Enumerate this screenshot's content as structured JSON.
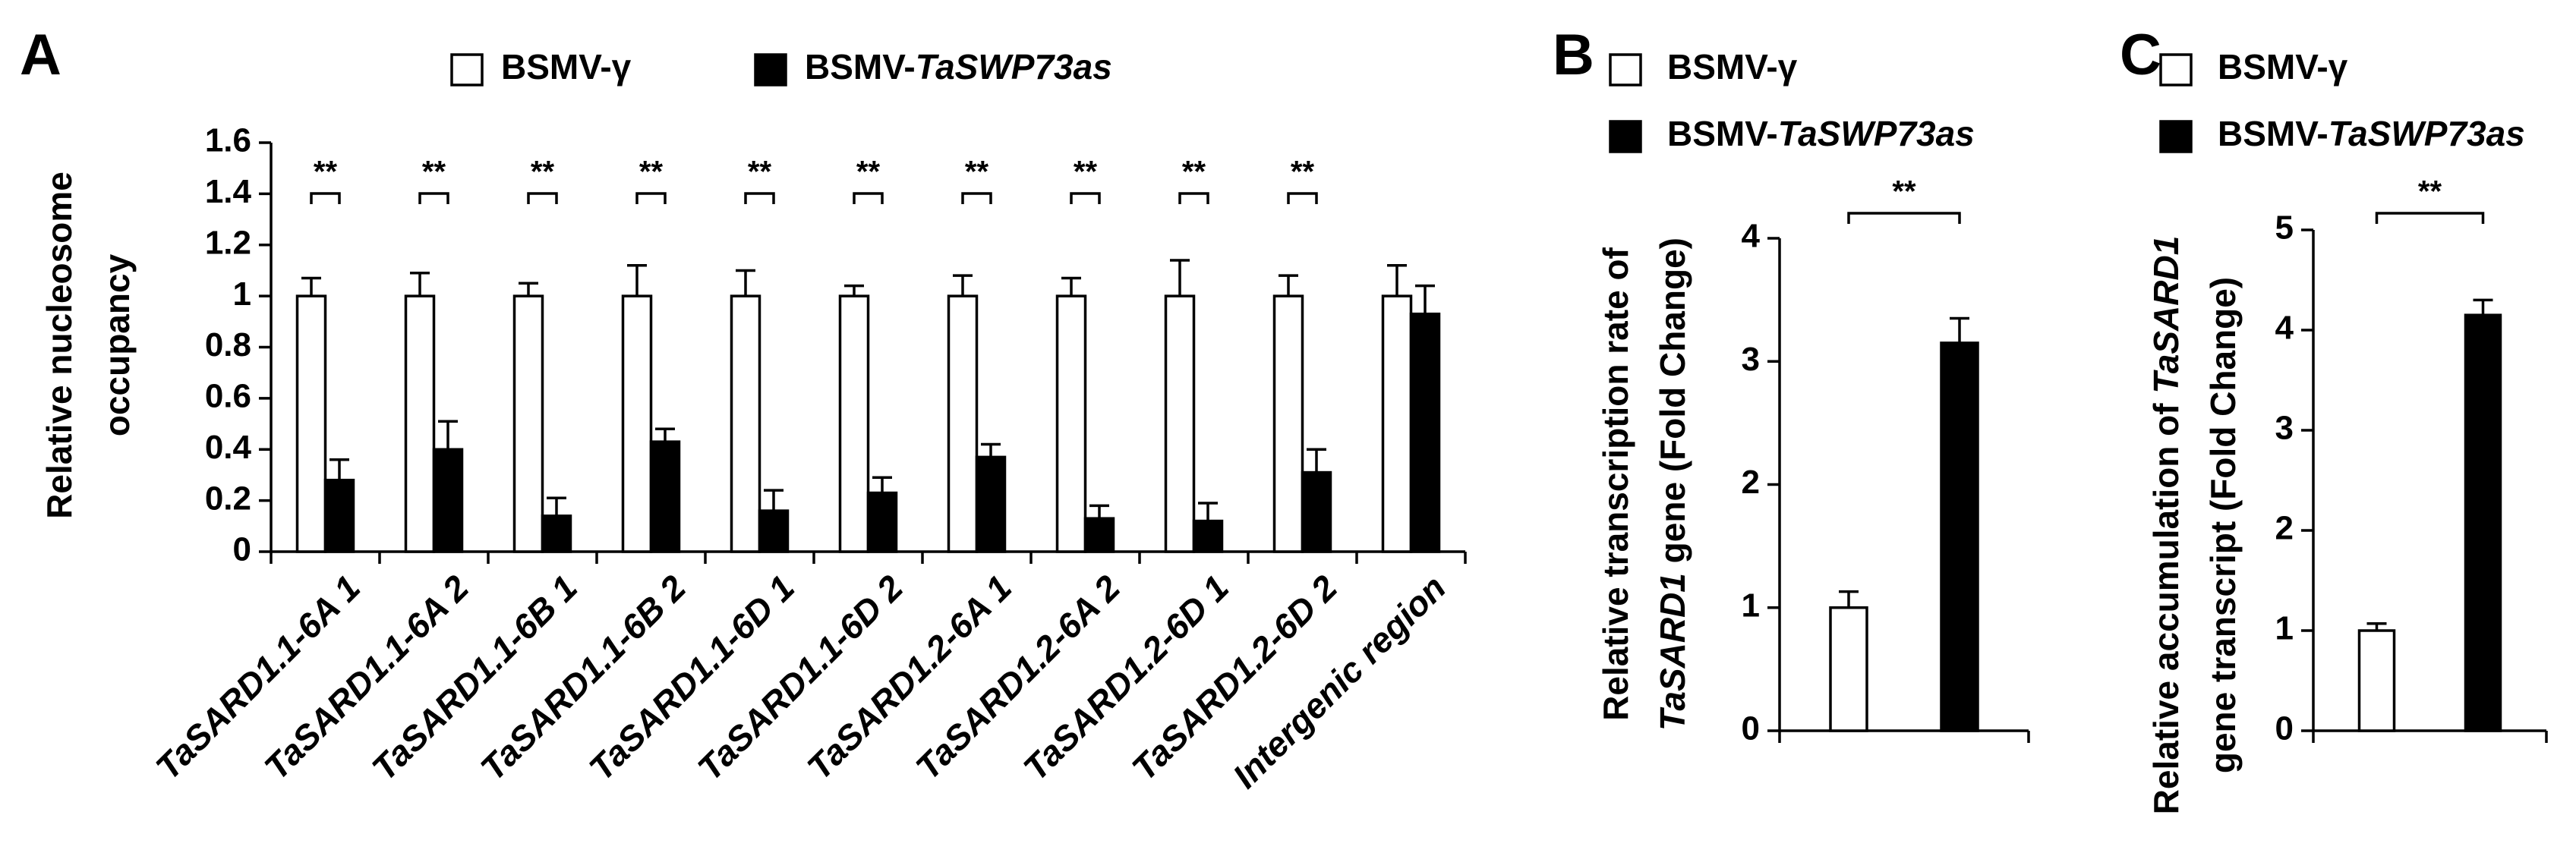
{
  "chart_data": [
    {
      "type": "bar",
      "panel": "A",
      "ylabel": [
        [
          "Relative nucleosome"
        ],
        [
          "occupancy"
        ]
      ],
      "categories": [
        "TaSARD1.1-6A 1",
        "TaSARD1.1-6A 2",
        "TaSARD1.1-6B 1",
        "TaSARD1.1-6B 2",
        "TaSARD1.1-6D 1",
        "TaSARD1.1-6D 2",
        "TaSARD1.2-6A 1",
        "TaSARD1.2-6A 2",
        "TaSARD1.2-6D 1",
        "TaSARD1.2-6D 2",
        "Intergenic region"
      ],
      "series": [
        {
          "name": "BSMV-γ",
          "color": "#ffffff",
          "values": [
            1,
            1,
            1,
            1,
            1,
            1,
            1,
            1,
            1,
            1,
            1
          ],
          "errors": [
            0.07,
            0.09,
            0.05,
            0.12,
            0.1,
            0.04,
            0.08,
            0.07,
            0.14,
            0.08,
            0.12
          ]
        },
        {
          "name": "BSMV-TaSWP73as",
          "legend_italic": true,
          "color": "#000000",
          "values": [
            0.28,
            0.4,
            0.14,
            0.43,
            0.16,
            0.23,
            0.37,
            0.13,
            0.12,
            0.31,
            0.93
          ],
          "errors": [
            0.08,
            0.11,
            0.07,
            0.05,
            0.08,
            0.06,
            0.05,
            0.05,
            0.07,
            0.09,
            0.11
          ]
        }
      ],
      "significance": [
        "**",
        "**",
        "**",
        "**",
        "**",
        "**",
        "**",
        "**",
        "**",
        "**",
        null
      ],
      "ylim": [
        0,
        1.6
      ],
      "yticks": [
        0,
        0.2,
        0.4,
        0.6,
        0.8,
        1,
        1.2,
        1.4,
        1.6
      ]
    },
    {
      "type": "bar",
      "panel": "B",
      "ylabel": [
        [
          "Relative transcription rate of"
        ],
        [
          {
            "text": "TaSARD1",
            "italic": true
          },
          " gene (Fold Change)"
        ]
      ],
      "categories": [
        null
      ],
      "series": [
        {
          "name": "BSMV-γ",
          "color": "#ffffff",
          "values": [
            1
          ],
          "errors": [
            0.13
          ]
        },
        {
          "name": "BSMV-TaSWP73as",
          "legend_italic": true,
          "color": "#000000",
          "values": [
            3.15
          ],
          "errors": [
            0.2
          ]
        }
      ],
      "significance": [
        "**"
      ],
      "ylim": [
        0,
        4
      ],
      "yticks": [
        0,
        1,
        2,
        3,
        4
      ]
    },
    {
      "type": "bar",
      "panel": "C",
      "ylabel": [
        [
          "Relative accumulation of ",
          {
            "text": "TaSARD1",
            "italic": true
          }
        ],
        [
          "gene transcript (Fold Change)"
        ]
      ],
      "categories": [
        null
      ],
      "series": [
        {
          "name": "BSMV-γ",
          "color": "#ffffff",
          "values": [
            1
          ],
          "errors": [
            0.07
          ]
        },
        {
          "name": "BSMV-TaSWP73as",
          "legend_italic": true,
          "color": "#000000",
          "values": [
            4.15
          ],
          "errors": [
            0.15
          ]
        }
      ],
      "significance": [
        "**"
      ],
      "ylim": [
        0,
        5
      ],
      "yticks": [
        0,
        1,
        2,
        3,
        4,
        5
      ]
    }
  ]
}
